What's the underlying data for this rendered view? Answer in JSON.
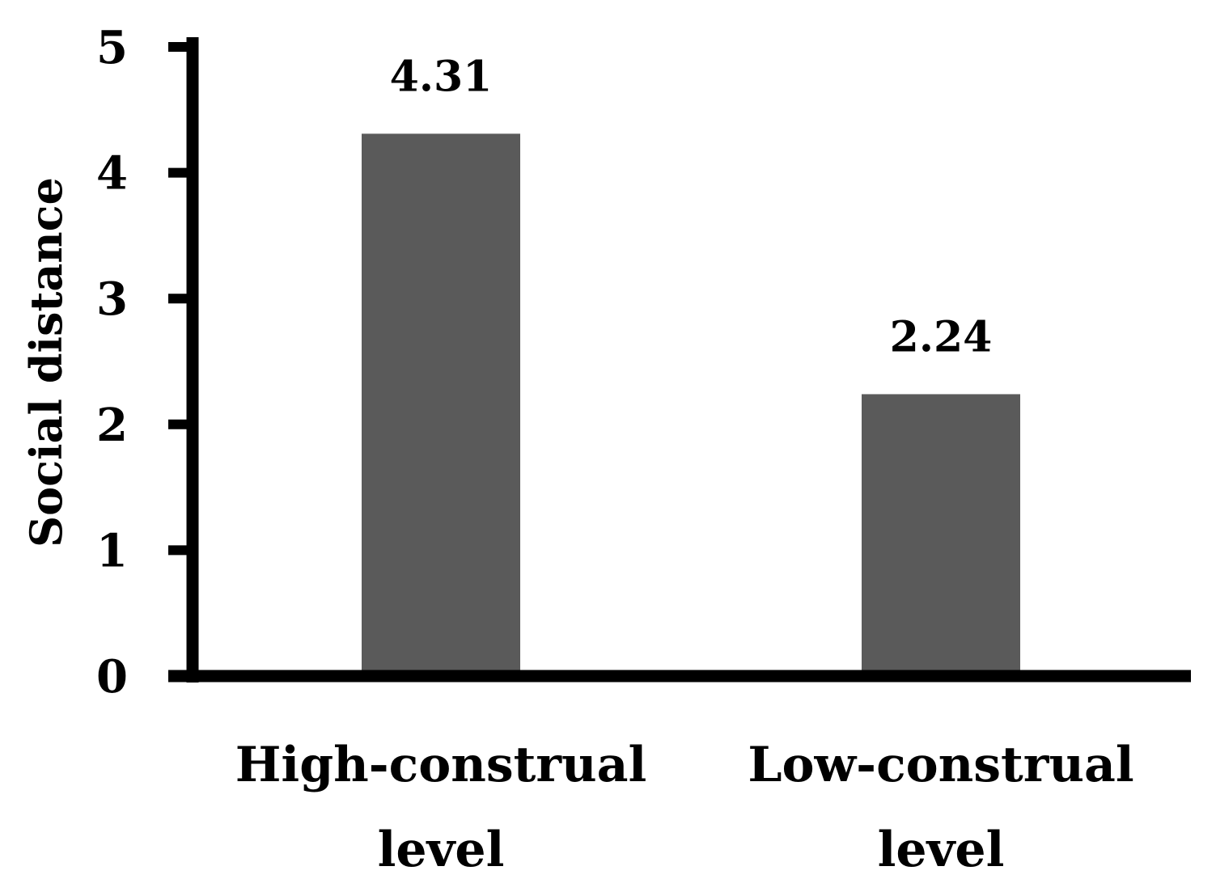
{
  "chart_data": {
    "type": "bar",
    "title": "",
    "xlabel": "",
    "ylabel": "Social distance",
    "categories": [
      "High-construal level",
      "Low-construal level"
    ],
    "category_label_lines": [
      [
        "High-construal",
        "level"
      ],
      [
        "Low-construal",
        "level"
      ]
    ],
    "values": [
      4.31,
      2.24
    ],
    "data_labels": [
      "4.31",
      "2.24"
    ],
    "ylim": [
      0,
      5
    ],
    "yticks": [
      "0",
      "1",
      "2",
      "3",
      "4",
      "5"
    ],
    "grid": false,
    "legend": "none",
    "colors": {
      "bar": "#5a5a5a",
      "axis": "#000000",
      "text": "#000000"
    }
  }
}
